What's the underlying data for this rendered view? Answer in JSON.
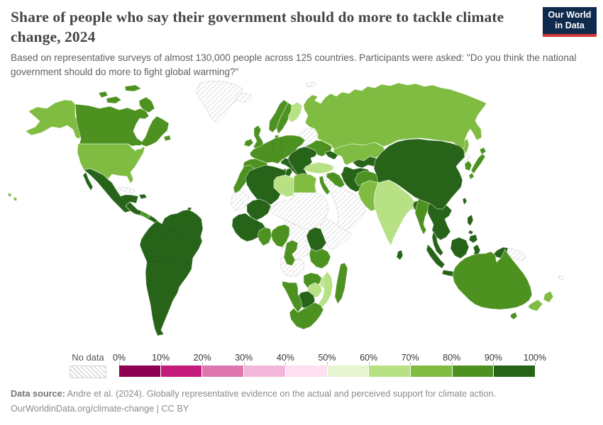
{
  "header": {
    "title": "Share of people who say their government should do more to tackle climate change, 2024",
    "subtitle": "Based on representative surveys of almost 130,000 people across 125 countries. Participants were asked: \"Do you think the national government should do more to fight global warming?\""
  },
  "logo": {
    "line1": "Our World",
    "line2": "in Data",
    "bg_color": "#102a4e",
    "accent_color": "#d13832"
  },
  "legend": {
    "no_data_label": "No data",
    "tick_labels": [
      "0%",
      "10%",
      "20%",
      "30%",
      "40%",
      "50%",
      "60%",
      "70%",
      "80%",
      "90%",
      "100%"
    ]
  },
  "footer": {
    "source_label": "Data source:",
    "source_text": " Andre et al. (2024). Globally representative evidence on the actual and perceived support for climate action.",
    "license_text": "OurWorldinData.org/climate-change | CC BY"
  },
  "chart_data": {
    "type": "choropleth_map",
    "title": "Share of people who say their government should do more to tackle climate change",
    "year": 2024,
    "unit": "share of people (%)",
    "question": "Do you think the national government should do more to fight global warming?",
    "legend_position": "bottom",
    "no_data": {
      "label": "No data",
      "style": "hatched"
    },
    "bins": [
      {
        "range": "0–10%",
        "color": "#8e0152"
      },
      {
        "range": "10–20%",
        "color": "#c51b7d"
      },
      {
        "range": "20–30%",
        "color": "#de77ae"
      },
      {
        "range": "30–40%",
        "color": "#f1b6da"
      },
      {
        "range": "40–50%",
        "color": "#fde0ef"
      },
      {
        "range": "50–60%",
        "color": "#e6f5d0"
      },
      {
        "range": "60–70%",
        "color": "#b8e186"
      },
      {
        "range": "70–80%",
        "color": "#7fbc41"
      },
      {
        "range": "80–90%",
        "color": "#4d9221"
      },
      {
        "range": "90–100%",
        "color": "#276419"
      }
    ],
    "regions": [
      {
        "id": "usa",
        "label": "United States",
        "bin": "70–80%",
        "bin_index": 7
      },
      {
        "id": "canada",
        "label": "Canada",
        "bin": "80–90%",
        "bin_index": 8
      },
      {
        "id": "greenland",
        "label": "Greenland",
        "bin": "No data",
        "bin_index": null
      },
      {
        "id": "iceland",
        "label": "Iceland",
        "bin": "No data",
        "bin_index": null
      },
      {
        "id": "svalbard",
        "label": "Svalbard",
        "bin": "No data",
        "bin_index": null
      },
      {
        "id": "mexico",
        "label": "Mexico",
        "bin": "90–100%",
        "bin_index": 9
      },
      {
        "id": "central-america",
        "label": "Central America",
        "bin": "90–100%",
        "bin_index": 9
      },
      {
        "id": "nicaragua",
        "label": "Honduras & Nicaragua",
        "bin": "80–90%",
        "bin_index": 8
      },
      {
        "id": "cuba",
        "label": "Cuba",
        "bin": "No data",
        "bin_index": null
      },
      {
        "id": "jamaica",
        "label": "Jamaica",
        "bin": "No data",
        "bin_index": null
      },
      {
        "id": "hispaniola",
        "label": "Dominican Republic & Haiti",
        "bin": "90–100%",
        "bin_index": 9
      },
      {
        "id": "trinidad",
        "label": "Trinidad and Tobago",
        "bin": "90–100%",
        "bin_index": 9
      },
      {
        "id": "south-america",
        "label": "South America (Brazil, Argentina, Colombia, Peru, Chile…)",
        "bin": "90–100%",
        "bin_index": 9
      },
      {
        "id": "guyana",
        "label": "Guyana, Suriname & French Guiana",
        "bin": "No data",
        "bin_index": null
      },
      {
        "id": "uk",
        "label": "United Kingdom",
        "bin": "80–90%",
        "bin_index": 8
      },
      {
        "id": "ireland",
        "label": "Ireland",
        "bin": "80–90%",
        "bin_index": 8
      },
      {
        "id": "norway",
        "label": "Norway",
        "bin": "80–90%",
        "bin_index": 8
      },
      {
        "id": "sweden",
        "label": "Sweden",
        "bin": "80–90%",
        "bin_index": 8
      },
      {
        "id": "denmark",
        "label": "Denmark",
        "bin": "80–90%",
        "bin_index": 8
      },
      {
        "id": "finland",
        "label": "Finland",
        "bin": "60–70%",
        "bin_index": 6
      },
      {
        "id": "europe-west",
        "label": "Western & Central Europe (France, Germany, Poland…)",
        "bin": "80–90%",
        "bin_index": 8
      },
      {
        "id": "iberia",
        "label": "Spain & Portugal",
        "bin": "80–90%",
        "bin_index": 8
      },
      {
        "id": "italy",
        "label": "Italy",
        "bin": "90–100%",
        "bin_index": 9
      },
      {
        "id": "balkans",
        "label": "Southeastern Europe (Greece, Romania, Serbia…)",
        "bin": "90–100%",
        "bin_index": 9
      },
      {
        "id": "baltics-belarus",
        "label": "Baltic states & Belarus",
        "bin": "No data",
        "bin_index": null
      },
      {
        "id": "ukraine",
        "label": "Ukraine",
        "bin": "80–90%",
        "bin_index": 8
      },
      {
        "id": "russia",
        "label": "Russia",
        "bin": "70–80%",
        "bin_index": 7
      },
      {
        "id": "kazakhstan",
        "label": "Kazakhstan",
        "bin": "70–80%",
        "bin_index": 7
      },
      {
        "id": "central-asia-south",
        "label": "Uzbekistan, Kyrgyzstan & Tajikistan",
        "bin": "90–100%",
        "bin_index": 9
      },
      {
        "id": "turkmenistan",
        "label": "Turkmenistan",
        "bin": "No data",
        "bin_index": null
      },
      {
        "id": "caucasus",
        "label": "Georgia & Azerbaijan",
        "bin": "90–100%",
        "bin_index": 9
      },
      {
        "id": "turkey",
        "label": "Turkey",
        "bin": "60–70%",
        "bin_index": 6
      },
      {
        "id": "syria",
        "label": "Syria",
        "bin": "No data",
        "bin_index": null
      },
      {
        "id": "levant",
        "label": "Israel & Jordan",
        "bin": "80–90%",
        "bin_index": 8
      },
      {
        "id": "iraq",
        "label": "Iraq",
        "bin": "80–90%",
        "bin_index": 8
      },
      {
        "id": "iran",
        "label": "Iran",
        "bin": "90–100%",
        "bin_index": 9
      },
      {
        "id": "arabia",
        "label": "Saudi Arabia, Yemen & Oman",
        "bin": "No data",
        "bin_index": null
      },
      {
        "id": "afghanistan",
        "label": "Afghanistan",
        "bin": "80–90%",
        "bin_index": 8
      },
      {
        "id": "pakistan",
        "label": "Pakistan",
        "bin": "70–80%",
        "bin_index": 7
      },
      {
        "id": "india",
        "label": "India",
        "bin": "60–70%",
        "bin_index": 6
      },
      {
        "id": "nepal",
        "label": "Nepal",
        "bin": "No data",
        "bin_index": null
      },
      {
        "id": "bangladesh",
        "label": "Bangladesh",
        "bin": "90–100%",
        "bin_index": 9
      },
      {
        "id": "sri-lanka",
        "label": "Sri Lanka",
        "bin": "90–100%",
        "bin_index": 9
      },
      {
        "id": "myanmar",
        "label": "Myanmar",
        "bin": "80–90%",
        "bin_index": 8
      },
      {
        "id": "indochina",
        "label": "Thailand, Vietnam, Laos & Cambodia",
        "bin": "90–100%",
        "bin_index": 9
      },
      {
        "id": "malay-peninsula",
        "label": "Malaysia",
        "bin": "90–100%",
        "bin_index": 9
      },
      {
        "id": "indonesia",
        "label": "Indonesia",
        "bin": "90–100%",
        "bin_index": 9
      },
      {
        "id": "philippines",
        "label": "Philippines",
        "bin": "90–100%",
        "bin_index": 9
      },
      {
        "id": "china",
        "label": "China & Mongolia",
        "bin": "90–100%",
        "bin_index": 9
      },
      {
        "id": "taiwan",
        "label": "Taiwan",
        "bin": "90–100%",
        "bin_index": 9
      },
      {
        "id": "north-korea",
        "label": "North Korea",
        "bin": "No data",
        "bin_index": null
      },
      {
        "id": "south-korea",
        "label": "South Korea",
        "bin": "80–90%",
        "bin_index": 8
      },
      {
        "id": "japan",
        "label": "Japan",
        "bin": "80–90%",
        "bin_index": 8
      },
      {
        "id": "west-papua",
        "label": "Indonesia (Papua)",
        "bin": "90–100%",
        "bin_index": 9
      },
      {
        "id": "png",
        "label": "Papua New Guinea",
        "bin": "No data",
        "bin_index": null
      },
      {
        "id": "australia",
        "label": "Australia",
        "bin": "80–90%",
        "bin_index": 8
      },
      {
        "id": "new-zealand",
        "label": "New Zealand",
        "bin": "70–80%",
        "bin_index": 7
      },
      {
        "id": "new-caledonia",
        "label": "New Caledonia",
        "bin": "No data",
        "bin_index": null
      },
      {
        "id": "morocco",
        "label": "Morocco",
        "bin": "80–90%",
        "bin_index": 8
      },
      {
        "id": "western-sahara",
        "label": "Western Sahara & Mauritania",
        "bin": "No data",
        "bin_index": null
      },
      {
        "id": "algeria",
        "label": "Algeria",
        "bin": "90–100%",
        "bin_index": 9
      },
      {
        "id": "tunisia",
        "label": "Tunisia",
        "bin": "90–100%",
        "bin_index": 9
      },
      {
        "id": "libya",
        "label": "Libya",
        "bin": "60–70%",
        "bin_index": 6
      },
      {
        "id": "egypt",
        "label": "Egypt",
        "bin": "70–80%",
        "bin_index": 7
      },
      {
        "id": "sahara-band",
        "label": "Niger, Chad & Sudan",
        "bin": "No data",
        "bin_index": null
      },
      {
        "id": "mali",
        "label": "Mali",
        "bin": "90–100%",
        "bin_index": 9
      },
      {
        "id": "west-africa",
        "label": "Senegal, Guinea & Côte d'Ivoire",
        "bin": "90–100%",
        "bin_index": 9
      },
      {
        "id": "ghana",
        "label": "Ghana, Togo & Benin",
        "bin": "80–90%",
        "bin_index": 8
      },
      {
        "id": "nigeria",
        "label": "Nigeria",
        "bin": "80–90%",
        "bin_index": 8
      },
      {
        "id": "cameroon",
        "label": "Cameroon & Gabon",
        "bin": "80–90%",
        "bin_index": 8
      },
      {
        "id": "horn",
        "label": "Ethiopia & Somalia",
        "bin": "No data",
        "bin_index": null
      },
      {
        "id": "drc",
        "label": "DR Congo",
        "bin": "No data",
        "bin_index": null
      },
      {
        "id": "angola",
        "label": "Angola",
        "bin": "No data",
        "bin_index": null
      },
      {
        "id": "kenya-uganda",
        "label": "Kenya & Uganda",
        "bin": "90–100%",
        "bin_index": 9
      },
      {
        "id": "tanzania",
        "label": "Tanzania",
        "bin": "80–90%",
        "bin_index": 8
      },
      {
        "id": "zambia",
        "label": "Zambia",
        "bin": "80–90%",
        "bin_index": 8
      },
      {
        "id": "malawi",
        "label": "Malawi",
        "bin": "60–70%",
        "bin_index": 6
      },
      {
        "id": "mozambique",
        "label": "Mozambique",
        "bin": "60–70%",
        "bin_index": 6
      },
      {
        "id": "zimbabwe",
        "label": "Zimbabwe",
        "bin": "60–70%",
        "bin_index": 6
      },
      {
        "id": "botswana",
        "label": "Botswana",
        "bin": "90–100%",
        "bin_index": 9
      },
      {
        "id": "namibia",
        "label": "Namibia",
        "bin": "80–90%",
        "bin_index": 8
      },
      {
        "id": "south-africa",
        "label": "South Africa",
        "bin": "80–90%",
        "bin_index": 8
      },
      {
        "id": "madagascar",
        "label": "Madagascar",
        "bin": "80–90%",
        "bin_index": 8
      }
    ]
  }
}
